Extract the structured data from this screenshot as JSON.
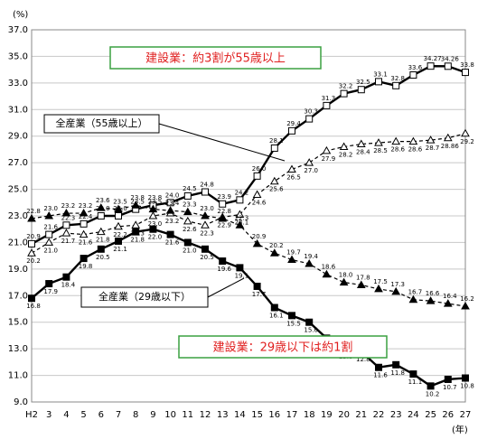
{
  "chart_data": {
    "type": "line",
    "y_unit": "(%)",
    "x_unit": "(年)",
    "categories": [
      "H2",
      "3",
      "4",
      "5",
      "6",
      "7",
      "8",
      "9",
      "10",
      "11",
      "12",
      "13",
      "14",
      "15",
      "16",
      "17",
      "18",
      "19",
      "20",
      "21",
      "22",
      "23",
      "24",
      "25",
      "26",
      "27"
    ],
    "ylim": [
      9,
      37
    ],
    "yticks": [
      {
        "value": 9,
        "label": "9.0"
      },
      {
        "value": 11,
        "label": "11.0"
      },
      {
        "value": 13,
        "label": "13.0"
      },
      {
        "value": 15,
        "label": "15.0"
      },
      {
        "value": 17,
        "label": "17.0"
      },
      {
        "value": 19,
        "label": "19.0"
      },
      {
        "value": 21,
        "label": "21.0"
      },
      {
        "value": 23,
        "label": "23.0"
      },
      {
        "value": 25,
        "label": "25.0"
      },
      {
        "value": 27,
        "label": "27.0"
      },
      {
        "value": 29,
        "label": "29.0"
      },
      {
        "value": 31,
        "label": "31.0"
      },
      {
        "value": 33,
        "label": "33.0"
      },
      {
        "value": 35,
        "label": "35.0"
      },
      {
        "value": 37,
        "label": "37.0"
      }
    ],
    "grid": true,
    "annotations": [
      "建設業：約3割が55歳以上",
      "建設業：29歳以下は約1割"
    ],
    "series": [
      {
        "color": "#000000",
        "marker": "square-open",
        "dash": false,
        "values": [
          20.9,
          21.6,
          22.3,
          22.4,
          23.0,
          23.0,
          23.5,
          23.8,
          24.0,
          24.5,
          24.8,
          23.9,
          24.2,
          26.0,
          28.1,
          29.4,
          30.3,
          31.3,
          32.2,
          32.5,
          33.1,
          32.8,
          33.6,
          34.27,
          34.26,
          33.8
        ],
        "value_labels": [
          "20.9",
          "21.6",
          "22.3",
          "22.4",
          "23.0",
          "23.0",
          "23.5",
          "23.8",
          "24.0",
          "24.5",
          "24.8",
          "23.9",
          "24.2",
          "26.0",
          "28.1",
          "29.4",
          "30.3",
          "31.3",
          "32.2",
          "32.5",
          "33.1",
          "32.8",
          "33.6",
          "34.27",
          "34.26",
          "33.8"
        ]
      },
      {
        "name": "全産業（55歳以上）",
        "color": "#000000",
        "marker": "triangle-open",
        "dash": true,
        "values": [
          20.2,
          21.0,
          21.7,
          21.6,
          21.8,
          22.2,
          22.3,
          23.0,
          23.2,
          22.6,
          22.3,
          22.9,
          23.1,
          24.6,
          25.6,
          26.5,
          27.0,
          27.9,
          28.2,
          28.4,
          28.5,
          28.6,
          28.6,
          28.7,
          28.86,
          29.2
        ],
        "value_labels": [
          "20.2",
          "21.0",
          "21.7",
          "21.6",
          "21.8",
          "22.2",
          "22.3",
          "23.0",
          "23.2",
          "22.6",
          "22.3",
          "22.9",
          "23.1",
          "24.6",
          "25.6",
          "26.5",
          "27.0",
          "27.9",
          "28.2",
          "28.4",
          "28.5",
          "28.6",
          "28.6",
          "28.7",
          "28.86",
          "29.2"
        ]
      },
      {
        "name": "全産業（29歳以下）",
        "color": "#000000",
        "marker": "triangle-filled",
        "dash": true,
        "values": [
          22.8,
          23.0,
          23.2,
          23.2,
          23.6,
          23.5,
          23.8,
          23.5,
          23.4,
          23.3,
          23.0,
          22.8,
          22.3,
          20.9,
          20.2,
          19.7,
          19.4,
          18.6,
          18.0,
          17.8,
          17.5,
          17.3,
          16.7,
          16.6,
          16.4,
          16.2
        ],
        "value_labels": [
          "22.8",
          "23.0",
          "23.2",
          "23.2",
          "23.6",
          "23.5",
          "23.8",
          "23.5",
          "23.4",
          "23.3",
          "23.0",
          "22.8",
          "22.3",
          "20.9",
          "20.2",
          "19.7",
          "19.4",
          "18.6",
          "18.0",
          "17.8",
          "17.5",
          "17.3",
          "16.7",
          "16.6",
          "16.4",
          "16.2"
        ]
      },
      {
        "color": "#000000",
        "marker": "square-filled",
        "dash": false,
        "values": [
          16.8,
          17.9,
          18.4,
          19.8,
          20.5,
          21.1,
          21.8,
          22.0,
          21.6,
          21.0,
          20.5,
          19.6,
          19.1,
          17.7,
          16.1,
          15.5,
          15.0,
          13.8,
          13.0,
          12.8,
          11.6,
          11.8,
          11.1,
          10.2,
          10.7,
          10.8
        ],
        "value_labels": [
          "16.8",
          "17.9",
          "18.4",
          "19.8",
          "20.5",
          "21.1",
          "21.8",
          "22.0",
          "21.6",
          "21.0",
          "20.5",
          "19.6",
          "19.1",
          "17.7",
          "16.1",
          "15.5",
          "15.0",
          "13.8",
          "13.0",
          "12.8",
          "11.6",
          "11.8",
          "11.1",
          "10.2",
          "10.7",
          "10.8"
        ]
      }
    ]
  }
}
